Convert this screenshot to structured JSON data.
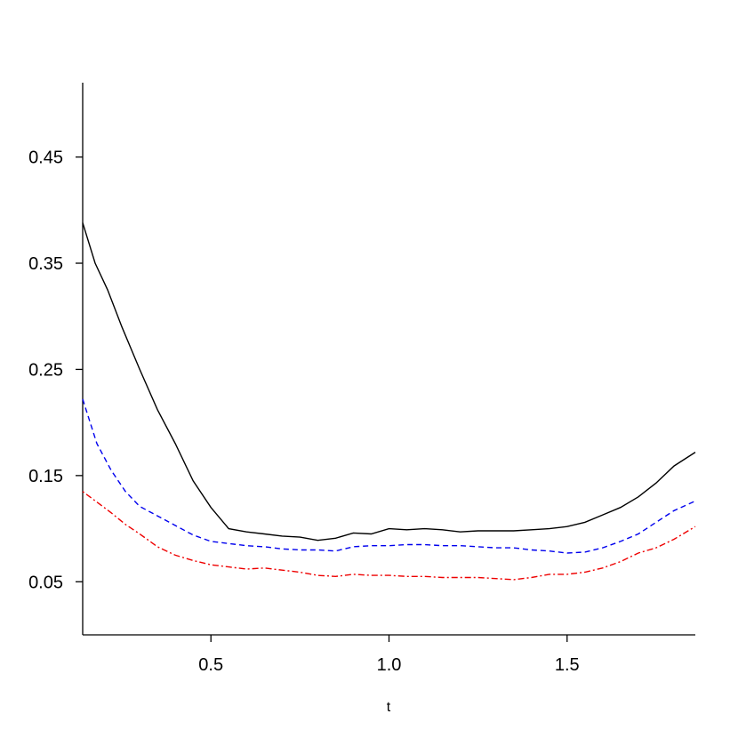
{
  "chart_data": {
    "type": "line",
    "title": "",
    "xlabel": "t",
    "ylabel": "",
    "xlim": [
      0.14,
      1.86
    ],
    "ylim": [
      0.0,
      0.52
    ],
    "xticks": [
      0.5,
      1.0,
      1.5
    ],
    "xtick_labels": [
      "0.5",
      "1.0",
      "1.5"
    ],
    "yticks": [
      0.05,
      0.15,
      0.25,
      0.35,
      0.45
    ],
    "ytick_labels": [
      "0.05",
      "0.15",
      "0.25",
      "0.35",
      "0.45"
    ],
    "grid": false,
    "legend": "none",
    "series": [
      {
        "color": "#000000",
        "style": "solid",
        "points": [
          [
            0.14,
            0.388
          ],
          [
            0.175,
            0.35
          ],
          [
            0.21,
            0.325
          ],
          [
            0.25,
            0.29
          ],
          [
            0.3,
            0.25
          ],
          [
            0.35,
            0.212
          ],
          [
            0.4,
            0.18
          ],
          [
            0.45,
            0.145
          ],
          [
            0.5,
            0.12
          ],
          [
            0.55,
            0.1
          ],
          [
            0.6,
            0.097
          ],
          [
            0.65,
            0.095
          ],
          [
            0.7,
            0.093
          ],
          [
            0.75,
            0.092
          ],
          [
            0.8,
            0.089
          ],
          [
            0.85,
            0.091
          ],
          [
            0.9,
            0.096
          ],
          [
            0.95,
            0.095
          ],
          [
            1.0,
            0.1
          ],
          [
            1.05,
            0.099
          ],
          [
            1.1,
            0.1
          ],
          [
            1.15,
            0.099
          ],
          [
            1.2,
            0.097
          ],
          [
            1.25,
            0.098
          ],
          [
            1.3,
            0.098
          ],
          [
            1.35,
            0.098
          ],
          [
            1.4,
            0.099
          ],
          [
            1.45,
            0.1
          ],
          [
            1.5,
            0.102
          ],
          [
            1.55,
            0.106
          ],
          [
            1.6,
            0.113
          ],
          [
            1.65,
            0.12
          ],
          [
            1.7,
            0.13
          ],
          [
            1.75,
            0.143
          ],
          [
            1.8,
            0.159
          ],
          [
            1.86,
            0.172
          ]
        ]
      },
      {
        "color": "#0000ee",
        "style": "dashed",
        "points": [
          [
            0.14,
            0.222
          ],
          [
            0.18,
            0.18
          ],
          [
            0.22,
            0.155
          ],
          [
            0.26,
            0.135
          ],
          [
            0.3,
            0.121
          ],
          [
            0.35,
            0.112
          ],
          [
            0.4,
            0.103
          ],
          [
            0.45,
            0.094
          ],
          [
            0.5,
            0.088
          ],
          [
            0.55,
            0.086
          ],
          [
            0.6,
            0.084
          ],
          [
            0.65,
            0.083
          ],
          [
            0.7,
            0.081
          ],
          [
            0.75,
            0.08
          ],
          [
            0.8,
            0.08
          ],
          [
            0.85,
            0.079
          ],
          [
            0.9,
            0.083
          ],
          [
            0.95,
            0.084
          ],
          [
            1.0,
            0.084
          ],
          [
            1.05,
            0.085
          ],
          [
            1.1,
            0.085
          ],
          [
            1.15,
            0.084
          ],
          [
            1.2,
            0.084
          ],
          [
            1.25,
            0.083
          ],
          [
            1.3,
            0.082
          ],
          [
            1.35,
            0.082
          ],
          [
            1.4,
            0.08
          ],
          [
            1.45,
            0.079
          ],
          [
            1.5,
            0.077
          ],
          [
            1.55,
            0.078
          ],
          [
            1.6,
            0.082
          ],
          [
            1.65,
            0.088
          ],
          [
            1.7,
            0.095
          ],
          [
            1.75,
            0.106
          ],
          [
            1.8,
            0.117
          ],
          [
            1.86,
            0.126
          ]
        ]
      },
      {
        "color": "#ee0000",
        "style": "dotdash",
        "points": [
          [
            0.14,
            0.135
          ],
          [
            0.18,
            0.125
          ],
          [
            0.22,
            0.115
          ],
          [
            0.26,
            0.104
          ],
          [
            0.3,
            0.095
          ],
          [
            0.35,
            0.083
          ],
          [
            0.4,
            0.075
          ],
          [
            0.45,
            0.07
          ],
          [
            0.5,
            0.066
          ],
          [
            0.55,
            0.064
          ],
          [
            0.6,
            0.062
          ],
          [
            0.65,
            0.063
          ],
          [
            0.7,
            0.061
          ],
          [
            0.75,
            0.059
          ],
          [
            0.8,
            0.056
          ],
          [
            0.85,
            0.055
          ],
          [
            0.9,
            0.057
          ],
          [
            0.95,
            0.056
          ],
          [
            1.0,
            0.056
          ],
          [
            1.05,
            0.055
          ],
          [
            1.1,
            0.055
          ],
          [
            1.15,
            0.054
          ],
          [
            1.2,
            0.054
          ],
          [
            1.25,
            0.054
          ],
          [
            1.3,
            0.053
          ],
          [
            1.35,
            0.052
          ],
          [
            1.4,
            0.054
          ],
          [
            1.45,
            0.057
          ],
          [
            1.5,
            0.057
          ],
          [
            1.55,
            0.059
          ],
          [
            1.6,
            0.063
          ],
          [
            1.65,
            0.069
          ],
          [
            1.7,
            0.077
          ],
          [
            1.75,
            0.082
          ],
          [
            1.8,
            0.09
          ],
          [
            1.86,
            0.102
          ]
        ]
      }
    ]
  }
}
